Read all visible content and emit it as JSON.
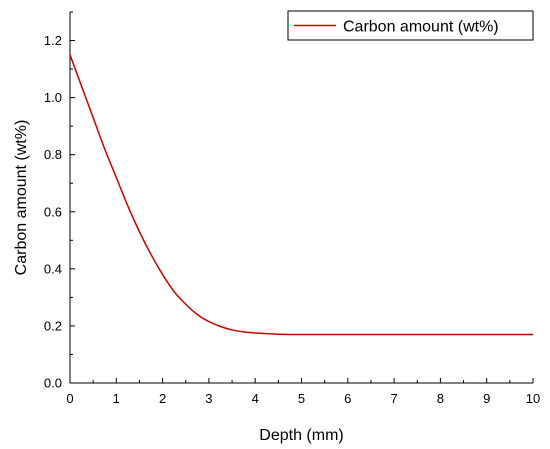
{
  "chart_data": {
    "type": "line",
    "title": "",
    "xlabel": "Depth (mm)",
    "ylabel": "Carbon amount (wt%)",
    "xlim": [
      0,
      10
    ],
    "ylim": [
      0,
      1.3
    ],
    "x_ticks": [
      "0",
      "1",
      "2",
      "3",
      "4",
      "5",
      "6",
      "7",
      "8",
      "9",
      "10"
    ],
    "y_ticks": [
      "0.0",
      "0.2",
      "0.4",
      "0.6",
      "0.8",
      "1.0",
      "1.2"
    ],
    "grid": false,
    "legend_position": "top-right",
    "series": [
      {
        "name": "Carbon amount (wt%)",
        "color": "#cc0000",
        "x": [
          0,
          0.25,
          0.5,
          0.75,
          1.0,
          1.25,
          1.5,
          1.75,
          2.0,
          2.25,
          2.5,
          2.75,
          3.0,
          3.25,
          3.5,
          3.75,
          4.0,
          4.5,
          5.0,
          5.5,
          6.0,
          7.0,
          8.0,
          9.0,
          10.0
        ],
        "y": [
          1.15,
          1.04,
          0.93,
          0.82,
          0.72,
          0.62,
          0.53,
          0.45,
          0.38,
          0.32,
          0.276,
          0.24,
          0.215,
          0.198,
          0.186,
          0.179,
          0.175,
          0.171,
          0.17,
          0.17,
          0.17,
          0.17,
          0.17,
          0.17,
          0.17
        ]
      }
    ]
  }
}
